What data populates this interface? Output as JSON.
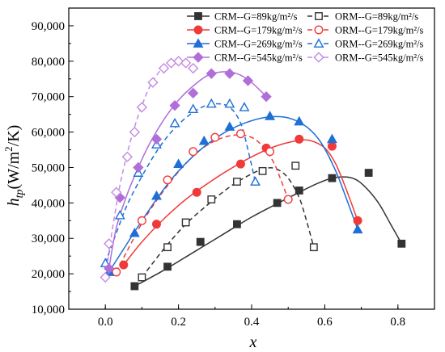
{
  "chart_data": {
    "type": "scatter",
    "title": "",
    "xlabel": "x",
    "ylabel": "h_tp(W/m²/K)",
    "ylabel_parts": {
      "main": "h",
      "sub": "tp",
      "unit_a": "(W/m",
      "unit_sup": "2",
      "unit_b": "/K)"
    },
    "xlim": [
      -0.1,
      0.9
    ],
    "ylim": [
      10000,
      95000
    ],
    "x_ticks": [
      0.0,
      0.2,
      0.4,
      0.6,
      0.8
    ],
    "x_tick_labels": [
      "0.0",
      "0.2",
      "0.4",
      "0.6",
      "0.8"
    ],
    "y_ticks": [
      10000,
      20000,
      30000,
      40000,
      50000,
      60000,
      70000,
      80000,
      90000
    ],
    "y_tick_labels": [
      "10,000",
      "20,000",
      "30,000",
      "40,000",
      "50,000",
      "60,000",
      "70,000",
      "80,000",
      "90,000"
    ],
    "grid": false,
    "legend_position": "top-right",
    "series": [
      {
        "name": "CRM--G=89kg/m²/s",
        "color": "#333333",
        "marker": "square",
        "filled": true,
        "line": "solid",
        "x": [
          0.08,
          0.17,
          0.26,
          0.36,
          0.47,
          0.53,
          0.62,
          0.72,
          0.81
        ],
        "y": [
          16500,
          22000,
          29000,
          34000,
          40000,
          43500,
          47000,
          48500,
          28500
        ],
        "fit_x": [
          0.08,
          0.16,
          0.24,
          0.32,
          0.4,
          0.47,
          0.53,
          0.58,
          0.62,
          0.66,
          0.69,
          0.72,
          0.75,
          0.78,
          0.81
        ],
        "fit_y": [
          16500,
          21000,
          26000,
          31000,
          36000,
          39800,
          43000,
          45500,
          47000,
          47300,
          46300,
          43500,
          39500,
          34000,
          28500
        ]
      },
      {
        "name": "ORM--G=89kg/m²/s",
        "color": "#333333",
        "marker": "square",
        "filled": false,
        "line": "dashed",
        "x": [
          0.1,
          0.17,
          0.22,
          0.29,
          0.36,
          0.43,
          0.52,
          0.57
        ],
        "y": [
          19000,
          27500,
          34500,
          41000,
          46000,
          49000,
          50500,
          27500
        ],
        "fit_x": [
          0.1,
          0.16,
          0.22,
          0.28,
          0.34,
          0.4,
          0.44,
          0.47,
          0.5,
          0.53,
          0.55,
          0.57
        ],
        "fit_y": [
          19000,
          27000,
          34000,
          39500,
          44500,
          48200,
          49800,
          49500,
          47000,
          41500,
          35000,
          27500
        ]
      },
      {
        "name": "CRM--G=179kg/m²/s",
        "color": "#f03a3a",
        "marker": "circle",
        "filled": true,
        "line": "solid",
        "x": [
          0.05,
          0.14,
          0.25,
          0.37,
          0.44,
          0.53,
          0.62,
          0.69
        ],
        "y": [
          22500,
          34000,
          43000,
          51000,
          55500,
          58000,
          56000,
          35000
        ],
        "fit_x": [
          0.05,
          0.1,
          0.16,
          0.22,
          0.28,
          0.34,
          0.4,
          0.46,
          0.52,
          0.56,
          0.6,
          0.63,
          0.66,
          0.69
        ],
        "fit_y": [
          22500,
          29000,
          35500,
          41000,
          45500,
          49500,
          53000,
          55800,
          57500,
          57600,
          55500,
          51000,
          43500,
          35000
        ]
      },
      {
        "name": "ORM--G=179kg/m²/s",
        "color": "#f03a3a",
        "marker": "circle",
        "filled": false,
        "line": "dashed",
        "x": [
          0.03,
          0.1,
          0.17,
          0.24,
          0.3,
          0.37,
          0.45,
          0.5
        ],
        "y": [
          20500,
          35000,
          46500,
          54500,
          58500,
          59500,
          54500,
          41000
        ],
        "fit_x": [
          0.03,
          0.07,
          0.11,
          0.16,
          0.21,
          0.26,
          0.31,
          0.36,
          0.4,
          0.43,
          0.46,
          0.48,
          0.5
        ],
        "fit_y": [
          20500,
          28500,
          36000,
          43500,
          50000,
          55000,
          58000,
          59200,
          58500,
          56000,
          51500,
          46500,
          41000
        ]
      },
      {
        "name": "CRM--G=269kg/m²/s",
        "color": "#1f6fd6",
        "marker": "triangle",
        "filled": true,
        "line": "solid",
        "x": [
          0.01,
          0.08,
          0.14,
          0.2,
          0.27,
          0.34,
          0.45,
          0.53,
          0.62,
          0.69
        ],
        "y": [
          20500,
          31500,
          42000,
          51000,
          57500,
          61500,
          64500,
          63000,
          58000,
          32500
        ],
        "fit_x": [
          0.01,
          0.05,
          0.1,
          0.15,
          0.2,
          0.26,
          0.32,
          0.38,
          0.44,
          0.5,
          0.55,
          0.59,
          0.63,
          0.66,
          0.69
        ],
        "fit_y": [
          20500,
          27000,
          35000,
          42500,
          49000,
          55000,
          59500,
          62500,
          64200,
          64000,
          61500,
          57000,
          49000,
          41000,
          32500
        ]
      },
      {
        "name": "ORM--G=269kg/m²/s",
        "color": "#1f6fd6",
        "marker": "triangle",
        "filled": false,
        "line": "dashed",
        "x": [
          0.0,
          0.04,
          0.09,
          0.14,
          0.19,
          0.24,
          0.29,
          0.34,
          0.38,
          0.41
        ],
        "y": [
          23000,
          36500,
          48500,
          56500,
          62500,
          66500,
          68000,
          68000,
          67000,
          46000
        ],
        "fit_x": [
          0.0,
          0.03,
          0.06,
          0.1,
          0.14,
          0.18,
          0.22,
          0.26,
          0.3,
          0.34,
          0.37,
          0.39,
          0.41
        ],
        "fit_y": [
          23000,
          31500,
          39500,
          47500,
          54500,
          60000,
          64000,
          66800,
          68000,
          67000,
          62500,
          55000,
          46000
        ]
      },
      {
        "name": "CRM--G=545kg/m²/s",
        "color": "#b06fd8",
        "marker": "diamond",
        "filled": true,
        "line": "solid",
        "x": [
          0.01,
          0.04,
          0.09,
          0.14,
          0.19,
          0.24,
          0.29,
          0.34,
          0.39,
          0.44
        ],
        "y": [
          21500,
          41500,
          50000,
          58000,
          67500,
          71000,
          76500,
          76500,
          74500,
          70000
        ],
        "fit_x": [
          0.01,
          0.03,
          0.06,
          0.09,
          0.12,
          0.16,
          0.2,
          0.24,
          0.28,
          0.32,
          0.36,
          0.4,
          0.44
        ],
        "fit_y": [
          21500,
          33000,
          42500,
          50000,
          56500,
          63500,
          69000,
          73000,
          76000,
          77000,
          76500,
          74000,
          70000
        ]
      },
      {
        "name": "ORM--G=545kg/m²/s",
        "color": "#c58ae6",
        "marker": "diamond",
        "filled": false,
        "line": "dashed",
        "x": [
          0.0,
          0.01,
          0.03,
          0.06,
          0.08,
          0.1,
          0.13,
          0.16,
          0.18,
          0.2,
          0.22,
          0.24
        ],
        "y": [
          19000,
          28500,
          43000,
          53000,
          60000,
          67000,
          74000,
          78000,
          79500,
          80000,
          79500,
          78000
        ],
        "fit_x": [
          0.0,
          0.02,
          0.04,
          0.06,
          0.08,
          0.1,
          0.12,
          0.14,
          0.16,
          0.18,
          0.2,
          0.22,
          0.24
        ],
        "fit_y": [
          19000,
          33000,
          45000,
          54000,
          61500,
          67500,
          72500,
          76000,
          78500,
          79800,
          80200,
          79500,
          78000
        ]
      }
    ]
  }
}
